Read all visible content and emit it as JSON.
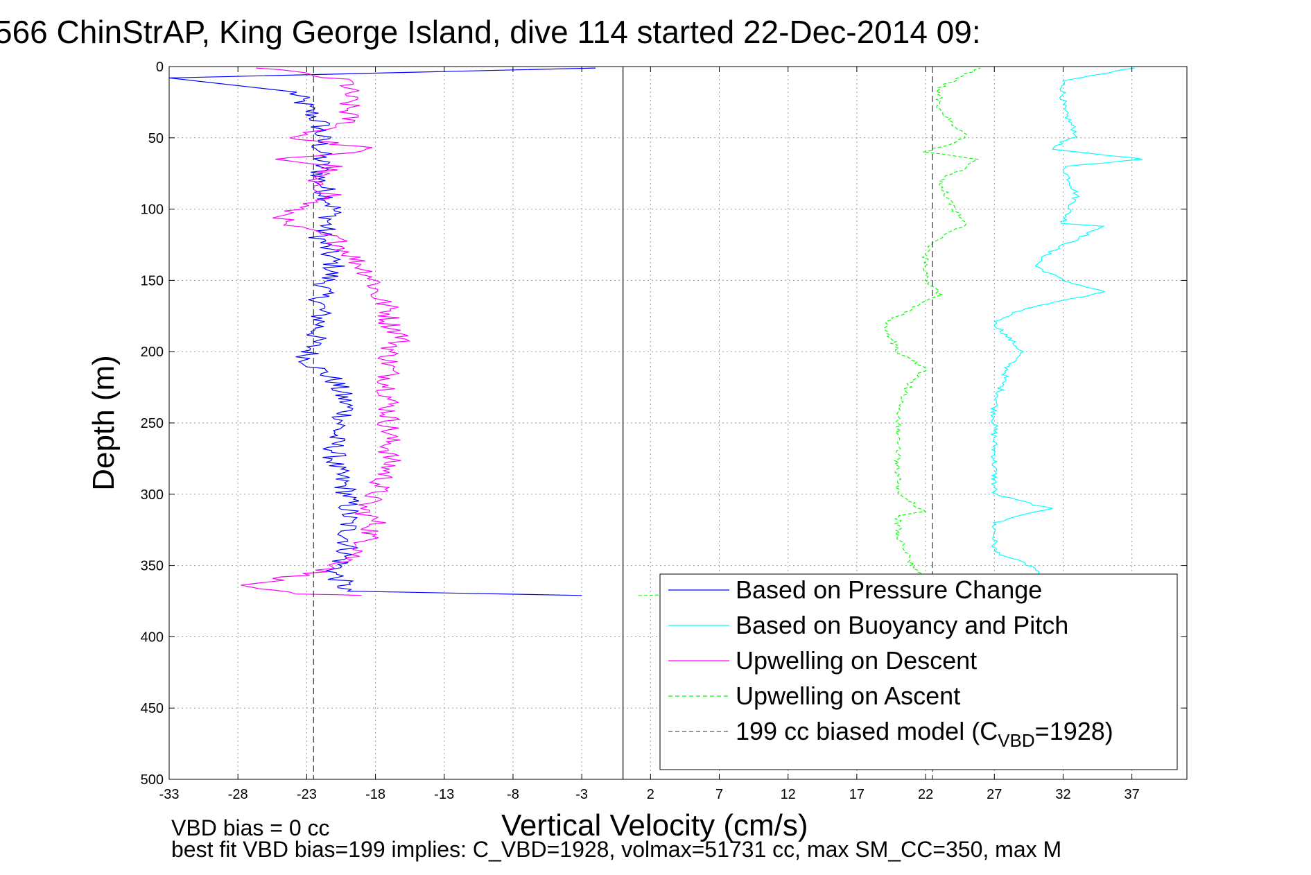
{
  "chart_data": {
    "type": "line",
    "title": "566 ChinStrAP, King George Island, dive 114 started 22-Dec-2014 09:",
    "xlabel": "Vertical Velocity (cm/s)",
    "ylabel": "Depth (m)",
    "xlim": [
      -33,
      41
    ],
    "ylim": [
      500,
      0
    ],
    "x_ticks": [
      -33,
      -28,
      -23,
      -18,
      -13,
      -8,
      -3,
      2,
      7,
      12,
      17,
      22,
      27,
      32,
      37
    ],
    "y_ticks": [
      0,
      50,
      100,
      150,
      200,
      250,
      300,
      350,
      400,
      450,
      500
    ],
    "grid": true,
    "legend_position": "bottom-right",
    "series": [
      {
        "name": "Based on Pressure Change",
        "color": "#0000ff",
        "style": "solid",
        "points": [
          [
            -2,
            1
          ],
          [
            -33,
            8
          ],
          [
            -24,
            18
          ],
          [
            -22,
            40
          ],
          [
            -22,
            60
          ],
          [
            -22,
            80
          ],
          [
            -21,
            100
          ],
          [
            -22,
            120
          ],
          [
            -21,
            140
          ],
          [
            -22,
            160
          ],
          [
            -22,
            180
          ],
          [
            -23,
            206
          ],
          [
            -21,
            220
          ],
          [
            -20,
            240
          ],
          [
            -21,
            260
          ],
          [
            -21,
            280
          ],
          [
            -20,
            300
          ],
          [
            -20,
            320
          ],
          [
            -20,
            340
          ],
          [
            -21,
            355
          ],
          [
            -20,
            368
          ],
          [
            -3,
            371
          ]
        ]
      },
      {
        "name": "Based on Buoyancy and Pitch",
        "color": "#00ffff",
        "style": "solid",
        "points": [
          [
            37,
            1
          ],
          [
            32,
            10
          ],
          [
            32,
            30
          ],
          [
            33,
            48
          ],
          [
            31,
            58
          ],
          [
            38,
            65
          ],
          [
            32,
            70
          ],
          [
            33,
            90
          ],
          [
            32,
            110
          ],
          [
            35,
            112
          ],
          [
            31,
            130
          ],
          [
            30,
            140
          ],
          [
            32,
            150
          ],
          [
            35,
            158
          ],
          [
            29,
            170
          ],
          [
            27,
            180
          ],
          [
            29,
            200
          ],
          [
            28,
            210
          ],
          [
            27,
            240
          ],
          [
            27,
            270
          ],
          [
            27,
            300
          ],
          [
            31,
            310
          ],
          [
            27,
            320
          ],
          [
            27,
            340
          ],
          [
            30,
            352
          ],
          [
            30,
            360
          ]
        ]
      },
      {
        "name": "Upwelling on Descent",
        "color": "#ff00ff",
        "style": "solid",
        "points": [
          [
            -26,
            1
          ],
          [
            -20,
            10
          ],
          [
            -20,
            25
          ],
          [
            -20,
            40
          ],
          [
            -24,
            50
          ],
          [
            -18,
            58
          ],
          [
            -25,
            65
          ],
          [
            -21,
            70
          ],
          [
            -23,
            80
          ],
          [
            -21,
            90
          ],
          [
            -24,
            100
          ],
          [
            -25,
            110
          ],
          [
            -21,
            120
          ],
          [
            -20,
            130
          ],
          [
            -19,
            140
          ],
          [
            -18,
            150
          ],
          [
            -18,
            160
          ],
          [
            -17,
            170
          ],
          [
            -17,
            180
          ],
          [
            -16,
            190
          ],
          [
            -17,
            200
          ],
          [
            -17,
            220
          ],
          [
            -17,
            250
          ],
          [
            -17,
            280
          ],
          [
            -18,
            300
          ],
          [
            -19,
            310
          ],
          [
            -18,
            320
          ],
          [
            -19,
            340
          ],
          [
            -21,
            352
          ],
          [
            -24,
            358
          ],
          [
            -28,
            365
          ],
          [
            -24,
            370
          ],
          [
            -19,
            371
          ]
        ]
      },
      {
        "name": "Upwelling on Ascent",
        "color": "#00ff00",
        "style": "dashed",
        "points": [
          [
            1,
            371
          ],
          [
            2,
            371
          ],
          [
            22,
            358
          ],
          [
            21,
            350
          ],
          [
            20,
            330
          ],
          [
            20,
            315
          ],
          [
            22,
            312
          ],
          [
            20,
            300
          ],
          [
            20,
            280
          ],
          [
            20,
            260
          ],
          [
            20,
            240
          ],
          [
            21,
            220
          ],
          [
            22,
            212
          ],
          [
            20,
            200
          ],
          [
            19,
            180
          ],
          [
            21,
            170
          ],
          [
            23,
            160
          ],
          [
            22,
            150
          ],
          [
            22,
            140
          ],
          [
            22,
            130
          ],
          [
            23,
            120
          ],
          [
            25,
            110
          ],
          [
            24,
            100
          ],
          [
            23,
            80
          ],
          [
            26,
            65
          ],
          [
            22,
            60
          ],
          [
            25,
            50
          ],
          [
            24,
            40
          ],
          [
            23,
            30
          ],
          [
            23,
            15
          ],
          [
            25,
            5
          ],
          [
            26,
            1
          ]
        ]
      },
      {
        "name": "199 cc biased model (CVBD=1928)",
        "color": "#000000",
        "style": "dashed",
        "points": [
          [
            -22.5,
            0
          ],
          [
            -22.5,
            500
          ],
          [
            22.5,
            0
          ],
          [
            22.5,
            500
          ]
        ]
      }
    ],
    "reference_lines": [
      {
        "x": 0,
        "style": "solid",
        "color": "#000000"
      }
    ]
  },
  "legend": {
    "entries": [
      {
        "label": "Based on Pressure Change",
        "color": "#0000ff",
        "style": "solid"
      },
      {
        "label": "Based on Buoyancy and Pitch",
        "color": "#00ffff",
        "style": "solid"
      },
      {
        "label": "Upwelling on Descent",
        "color": "#ff00ff",
        "style": "solid"
      },
      {
        "label": "Upwelling on Ascent",
        "color": "#00ff00",
        "style": "dashed"
      },
      {
        "label": "199 cc biased model (C",
        "sub": "VBD",
        "tail": "=1928)",
        "color": "#555555",
        "style": "dashed"
      }
    ]
  },
  "footer": {
    "line1": "VBD bias = 0 cc",
    "line2": "best fit VBD bias=199 implies: C_VBD=1928, volmax=51731 cc, max SM_CC=350, max M"
  }
}
